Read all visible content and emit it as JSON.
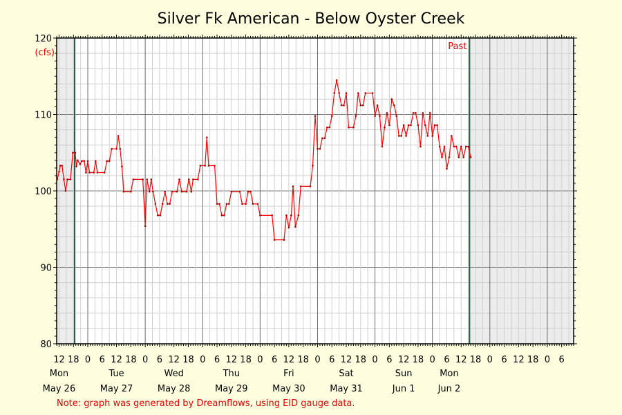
{
  "chart_data": {
    "type": "line",
    "title": "Silver Fk American - Below Oyster Creek",
    "ylabel": "(cfs)",
    "ylim": [
      80,
      120
    ],
    "yticks": [
      "80",
      "90",
      "100",
      "110",
      "120"
    ],
    "xlim_hours": [
      -13,
      203
    ],
    "hour_tick_labels": [
      "0",
      "6",
      "12",
      "18"
    ],
    "day_labels": [
      {
        "hour": -12,
        "label": "Mon",
        "sub": "May 26"
      },
      {
        "hour": 12,
        "label": "Tue",
        "sub": "May 27"
      },
      {
        "hour": 36,
        "label": "Wed",
        "sub": "May 28"
      },
      {
        "hour": 60,
        "label": "Thu",
        "sub": "May 29"
      },
      {
        "hour": 84,
        "label": "Fri",
        "sub": "May 30"
      },
      {
        "hour": 108,
        "label": "Sat",
        "sub": "May 31"
      },
      {
        "hour": 132,
        "label": "Sun",
        "sub": "Jun 1"
      },
      {
        "hour": 151,
        "label": "Mon",
        "sub": "Jun 2"
      }
    ],
    "series": [
      {
        "color": "#ff0000",
        "points": [
          [
            -12.75,
            101.5
          ],
          [
            -12,
            102.5
          ],
          [
            -11.5,
            103.3
          ],
          [
            -10.75,
            103.3
          ],
          [
            -10,
            101.5
          ],
          [
            -9.25,
            100
          ],
          [
            -8.5,
            101.5
          ],
          [
            -7.25,
            101.5
          ],
          [
            -6.25,
            105
          ],
          [
            -5.25,
            105
          ],
          [
            -4.75,
            103.2
          ],
          [
            -4.25,
            104
          ],
          [
            -3.25,
            103.5
          ],
          [
            -2.5,
            103.9
          ],
          [
            -1.5,
            103.9
          ],
          [
            -0.75,
            102.4
          ],
          [
            0,
            103.9
          ],
          [
            0.75,
            102.4
          ],
          [
            2.5,
            102.4
          ],
          [
            3.25,
            103.9
          ],
          [
            4,
            102.4
          ],
          [
            7,
            102.4
          ],
          [
            8,
            103.9
          ],
          [
            9,
            103.9
          ],
          [
            10,
            105.5
          ],
          [
            12,
            105.5
          ],
          [
            12.75,
            107.2
          ],
          [
            13.5,
            105.5
          ],
          [
            14.25,
            103.2
          ],
          [
            15,
            99.9
          ],
          [
            18,
            99.9
          ],
          [
            19,
            101.5
          ],
          [
            23,
            101.5
          ],
          [
            24,
            95.4
          ],
          [
            24.75,
            101.5
          ],
          [
            25.75,
            99.9
          ],
          [
            26.5,
            101.5
          ],
          [
            27.25,
            99.9
          ],
          [
            28.25,
            98.3
          ],
          [
            29.25,
            96.8
          ],
          [
            30.25,
            96.8
          ],
          [
            31.25,
            98.3
          ],
          [
            32.25,
            99.9
          ],
          [
            33.25,
            98.3
          ],
          [
            34.25,
            98.3
          ],
          [
            35.25,
            99.9
          ],
          [
            37.25,
            99.9
          ],
          [
            38.25,
            101.5
          ],
          [
            39.25,
            99.9
          ],
          [
            41.25,
            99.9
          ],
          [
            42.25,
            101.5
          ],
          [
            43.25,
            99.9
          ],
          [
            44,
            101.5
          ],
          [
            46,
            101.5
          ],
          [
            47,
            103.3
          ],
          [
            49,
            103.3
          ],
          [
            49.75,
            107
          ],
          [
            50.5,
            103.3
          ],
          [
            53,
            103.3
          ],
          [
            54,
            98.3
          ],
          [
            55,
            98.3
          ],
          [
            56,
            96.8
          ],
          [
            57,
            96.8
          ],
          [
            58,
            98.3
          ],
          [
            59,
            98.3
          ],
          [
            60,
            99.9
          ],
          [
            63.5,
            99.9
          ],
          [
            64.5,
            98.3
          ],
          [
            66,
            98.3
          ],
          [
            67,
            99.9
          ],
          [
            68,
            99.9
          ],
          [
            69,
            98.3
          ],
          [
            71,
            98.3
          ],
          [
            72,
            96.8
          ],
          [
            77,
            96.8
          ],
          [
            78,
            93.6
          ],
          [
            82,
            93.6
          ],
          [
            83,
            96.8
          ],
          [
            84,
            95.2
          ],
          [
            85,
            96.8
          ],
          [
            85.75,
            100.6
          ],
          [
            86.75,
            95.3
          ],
          [
            88,
            96.8
          ],
          [
            89,
            100.6
          ],
          [
            93,
            100.6
          ],
          [
            94,
            103.3
          ],
          [
            95,
            109.8
          ],
          [
            96,
            105.5
          ],
          [
            97,
            105.5
          ],
          [
            98,
            106.9
          ],
          [
            99,
            106.9
          ],
          [
            100,
            108.3
          ],
          [
            101,
            108.3
          ],
          [
            102,
            109.8
          ],
          [
            103,
            112.8
          ],
          [
            104,
            114.5
          ],
          [
            105,
            112.8
          ],
          [
            106,
            111.2
          ],
          [
            107,
            111.2
          ],
          [
            108,
            112.8
          ],
          [
            109,
            108.3
          ],
          [
            111,
            108.3
          ],
          [
            112,
            109.8
          ],
          [
            113,
            112.8
          ],
          [
            114,
            111.2
          ],
          [
            115,
            111.2
          ],
          [
            116,
            112.8
          ],
          [
            119,
            112.8
          ],
          [
            120,
            109.8
          ],
          [
            121,
            111.2
          ],
          [
            122,
            109.8
          ],
          [
            123,
            105.8
          ],
          [
            124,
            108.3
          ],
          [
            125,
            110.2
          ],
          [
            126,
            108.6
          ],
          [
            127,
            112
          ],
          [
            128,
            111.2
          ],
          [
            129,
            109.8
          ],
          [
            130,
            107.2
          ],
          [
            131,
            107.2
          ],
          [
            132,
            108.6
          ],
          [
            133,
            107.2
          ],
          [
            134,
            108.6
          ],
          [
            135,
            108.6
          ],
          [
            136,
            110.2
          ],
          [
            137,
            110.2
          ],
          [
            138,
            108.6
          ],
          [
            139,
            105.8
          ],
          [
            140,
            110.2
          ],
          [
            141,
            108.6
          ],
          [
            142,
            107.2
          ],
          [
            143,
            110.2
          ],
          [
            144,
            107.2
          ],
          [
            145,
            108.6
          ],
          [
            146,
            108.6
          ],
          [
            147,
            105.8
          ],
          [
            148,
            104.4
          ],
          [
            149,
            105.8
          ],
          [
            150,
            102.9
          ],
          [
            151,
            104.4
          ],
          [
            152,
            107.2
          ],
          [
            153,
            105.8
          ],
          [
            154,
            105.8
          ],
          [
            155,
            104.4
          ],
          [
            156,
            105.8
          ],
          [
            157,
            104.4
          ],
          [
            158,
            105.8
          ],
          [
            159,
            105.8
          ],
          [
            160,
            104.4
          ]
        ]
      }
    ],
    "markers": [
      {
        "hour": -5.5,
        "color": "#206040"
      },
      {
        "hour": 159.5,
        "color": "#206040",
        "label": "Past"
      }
    ],
    "grid": true
  },
  "footer": {
    "note": "Note: graph was generated by Dreamflows, using EID gauge data."
  }
}
